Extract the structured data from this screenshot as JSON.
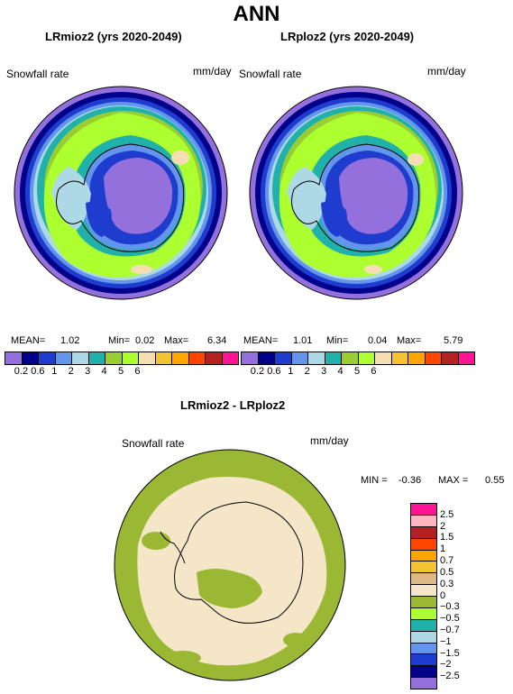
{
  "title": "ANN",
  "left": {
    "title": "LRmioz2 (yrs 2020-2049)",
    "variable": "Snowfall rate",
    "units": "mm/day",
    "stats": {
      "mean_label": "MEAN=",
      "mean": "1.02",
      "min_label": "Min=",
      "min": "0.02",
      "max_label": "Max=",
      "max": "6.34"
    }
  },
  "right": {
    "title": "LRploz2 (yrs 2020-2049)",
    "variable": "Snowfall rate",
    "units": "mm/day",
    "stats": {
      "mean_label": "MEAN=",
      "mean": "1.01",
      "min_label": "Min=",
      "min": "0.04",
      "max_label": "Max=",
      "max": "5.79"
    }
  },
  "diff": {
    "title": "LRmioz2 - LRploz2",
    "variable": "Snowfall rate",
    "units": "mm/day",
    "stats": {
      "min_label": "MIN =",
      "min": "-0.36",
      "max_label": "MAX =",
      "max": "0.55"
    }
  },
  "abs_colorbar": {
    "ticks": [
      "0.2",
      "0.6",
      "1",
      "2",
      "3",
      "4",
      "5",
      "6"
    ],
    "colors": [
      "#9370db",
      "#00008b",
      "#1e3ccd",
      "#6495ed",
      "#add8e6",
      "#20b2aa",
      "#9acd32",
      "#adff2f",
      "#f5deb3",
      "#f4c430",
      "#ffa500",
      "#ff4500",
      "#b22222",
      "#ff1493"
    ]
  },
  "diff_colorbar": {
    "ticks": [
      "2.5",
      "2",
      "1.5",
      "1",
      "0.7",
      "0.5",
      "0.3",
      "0",
      "−0.3",
      "−0.5",
      "−0.7",
      "−1",
      "−1.5",
      "−2",
      "−2.5"
    ],
    "colors": [
      "#ff1493",
      "#ffb6c1",
      "#b22222",
      "#ff4500",
      "#ffa500",
      "#f4c430",
      "#deb887",
      "#f5e6c8",
      "#9ab833",
      "#adff2f",
      "#20b2aa",
      "#add8e6",
      "#6495ed",
      "#1e3ccd",
      "#00008b",
      "#9370db"
    ]
  }
}
